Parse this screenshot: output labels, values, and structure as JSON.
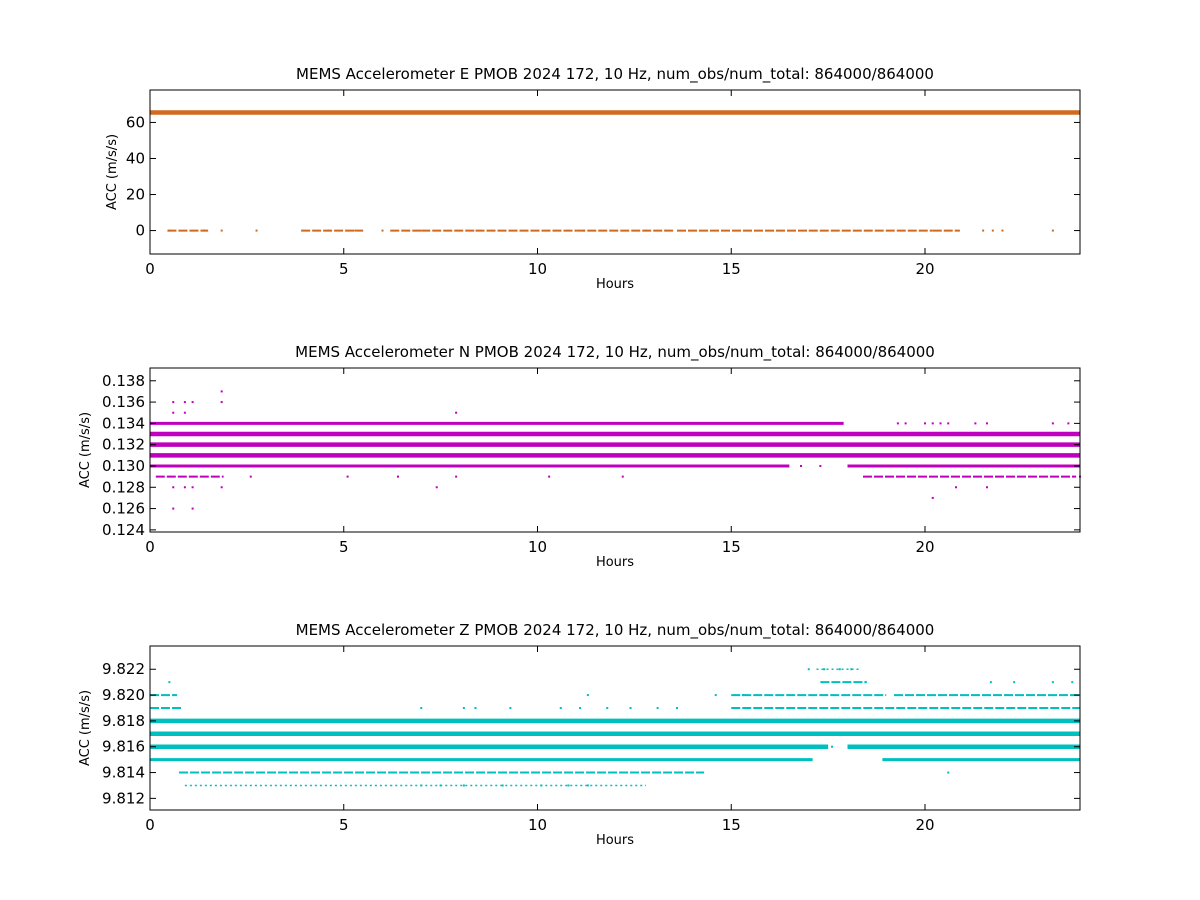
{
  "chart_data": [
    {
      "type": "scatter",
      "title": "MEMS Accelerometer E PMOB 2024 172, 10 Hz, num_obs/num_total: 864000/864000",
      "xlabel": "Hours",
      "ylabel": "ACC (m/s/s)",
      "xlim": [
        0,
        24
      ],
      "ylim": [
        -13,
        78
      ],
      "xticks": [
        0,
        5,
        10,
        15,
        20
      ],
      "yticks": [
        0,
        20,
        40,
        60
      ],
      "tick_labels_y": [
        "0",
        "20",
        "40",
        "60"
      ],
      "color": "#d2691e",
      "grid": false,
      "levels": [
        {
          "y": 65.5,
          "segments": [
            [
              0,
              24
            ]
          ],
          "weight": "heavy"
        },
        {
          "y": 0,
          "segments": [
            [
              0.45,
              1.5
            ],
            [
              3.9,
              5.5
            ],
            [
              6.2,
              7.0
            ],
            [
              7.0,
              8.4
            ],
            [
              8.4,
              11.0
            ],
            [
              11.0,
              13.5
            ],
            [
              13.6,
              17.0
            ],
            [
              17.0,
              20.2
            ],
            [
              20.2,
              20.9
            ]
          ],
          "weight": "light"
        }
      ],
      "scatter": [
        {
          "y": 0,
          "x": [
            0.5,
            1.4,
            1.85,
            2.75,
            4.6,
            5.3,
            6.0,
            11.2,
            12.8,
            13.3,
            21.5,
            21.75,
            22.0,
            23.3
          ]
        }
      ]
    },
    {
      "type": "scatter",
      "title": "MEMS Accelerometer N PMOB 2024 172, 10 Hz, num_obs/num_total: 864000/864000",
      "xlabel": "Hours",
      "ylabel": "ACC (m/s/s)",
      "xlim": [
        0,
        24
      ],
      "ylim": [
        0.1238,
        0.1392
      ],
      "xticks": [
        0,
        5,
        10,
        15,
        20
      ],
      "yticks": [
        0.124,
        0.126,
        0.128,
        0.13,
        0.132,
        0.134,
        0.136,
        0.138
      ],
      "tick_labels_y": [
        "0.124",
        "0.126",
        "0.128",
        "0.130",
        "0.132",
        "0.134",
        "0.136",
        "0.138"
      ],
      "color": "#bf00bf",
      "grid": false,
      "levels": [
        {
          "y": 0.134,
          "segments": [
            [
              0,
              17.9
            ]
          ],
          "weight": "medium"
        },
        {
          "y": 0.133,
          "segments": [
            [
              0,
              24
            ]
          ],
          "weight": "heavy"
        },
        {
          "y": 0.132,
          "segments": [
            [
              0,
              24
            ]
          ],
          "weight": "heavy"
        },
        {
          "y": 0.131,
          "segments": [
            [
              0,
              24
            ]
          ],
          "weight": "heavy"
        },
        {
          "y": 0.13,
          "segments": [
            [
              0,
              16.5
            ],
            [
              18.0,
              24
            ]
          ],
          "weight": "medium"
        },
        {
          "y": 0.129,
          "segments": [
            [
              0.15,
              1.9
            ],
            [
              18.4,
              23.9
            ]
          ],
          "weight": "light"
        }
      ],
      "scatter": [
        {
          "y": 0.137,
          "x": [
            1.85
          ]
        },
        {
          "y": 0.136,
          "x": [
            0.6,
            0.9,
            1.1,
            1.85
          ]
        },
        {
          "y": 0.135,
          "x": [
            0.6,
            0.9,
            7.9
          ]
        },
        {
          "y": 0.134,
          "x": [
            19.3,
            19.5,
            20.0,
            20.2,
            20.4,
            20.6,
            21.3,
            21.6,
            23.3,
            23.7
          ]
        },
        {
          "y": 0.133,
          "x": [
            18.3,
            18.6,
            18.9
          ]
        },
        {
          "y": 0.13,
          "x": [
            16.8,
            17.3
          ]
        },
        {
          "y": 0.129,
          "x": [
            2.6,
            5.1,
            6.4,
            7.9,
            10.3,
            12.2,
            24.0
          ]
        },
        {
          "y": 0.128,
          "x": [
            0.6,
            0.9,
            1.1,
            1.85,
            7.4,
            20.8,
            21.6
          ]
        },
        {
          "y": 0.127,
          "x": [
            20.2
          ]
        },
        {
          "y": 0.126,
          "x": [
            0.6,
            1.1
          ]
        }
      ]
    },
    {
      "type": "scatter",
      "title": "MEMS Accelerometer Z PMOB 2024 172, 10 Hz, num_obs/num_total: 864000/864000",
      "xlabel": "Hours",
      "ylabel": "ACC (m/s/s)",
      "xlim": [
        0,
        24
      ],
      "ylim": [
        9.8111,
        9.8238
      ],
      "xticks": [
        0,
        5,
        10,
        15,
        20
      ],
      "yticks": [
        9.812,
        9.814,
        9.816,
        9.818,
        9.82,
        9.822
      ],
      "tick_labels_y": [
        "9.812",
        "9.814",
        "9.816",
        "9.818",
        "9.820",
        "9.822"
      ],
      "color": "#00bfbf",
      "grid": false,
      "levels": [
        {
          "y": 9.822,
          "segments": [
            [
              17.2,
              18.3
            ]
          ],
          "weight": "dots"
        },
        {
          "y": 9.821,
          "segments": [
            [
              17.3,
              18.5
            ]
          ],
          "weight": "light"
        },
        {
          "y": 9.82,
          "segments": [
            [
              0,
              0.7
            ],
            [
              15.0,
              19.0
            ],
            [
              19.2,
              24
            ]
          ],
          "weight": "light"
        },
        {
          "y": 9.819,
          "segments": [
            [
              0,
              0.8
            ],
            [
              15.0,
              24
            ]
          ],
          "weight": "light"
        },
        {
          "y": 9.818,
          "segments": [
            [
              0,
              24
            ]
          ],
          "weight": "heavy"
        },
        {
          "y": 9.817,
          "segments": [
            [
              0,
              24
            ]
          ],
          "weight": "heavy"
        },
        {
          "y": 9.816,
          "segments": [
            [
              0,
              17.5
            ],
            [
              18.0,
              24
            ]
          ],
          "weight": "heavy"
        },
        {
          "y": 9.815,
          "segments": [
            [
              0,
              17.1
            ],
            [
              18.9,
              24
            ]
          ],
          "weight": "medium"
        },
        {
          "y": 9.814,
          "segments": [
            [
              0.75,
              14.3
            ]
          ],
          "weight": "light"
        },
        {
          "y": 9.813,
          "segments": [
            [
              0.9,
              6.2
            ],
            [
              6.2,
              12.8
            ]
          ],
          "weight": "dots"
        }
      ],
      "scatter": [
        {
          "y": 9.822,
          "x": [
            17.0,
            17.4,
            17.8,
            18.1
          ]
        },
        {
          "y": 9.821,
          "x": [
            0.5,
            21.7,
            22.3,
            23.3,
            23.8
          ]
        },
        {
          "y": 9.82,
          "x": [
            11.3,
            14.6,
            15.3
          ]
        },
        {
          "y": 9.819,
          "x": [
            7.0,
            8.1,
            8.4,
            9.3,
            10.6,
            11.1,
            11.8,
            12.4,
            13.1,
            13.6
          ]
        },
        {
          "y": 9.816,
          "x": [
            17.6,
            18.3
          ]
        },
        {
          "y": 9.814,
          "x": [
            20.6
          ]
        },
        {
          "y": 9.813,
          "x": [
            7.0,
            7.5,
            8.1,
            9.1,
            10.1,
            10.8,
            11.3
          ]
        }
      ]
    }
  ]
}
